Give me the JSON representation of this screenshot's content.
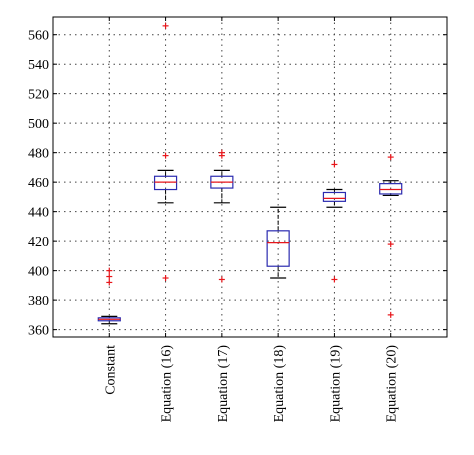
{
  "chart_data": {
    "type": "boxplot",
    "title": "",
    "xlabel": "",
    "ylabel": "",
    "ylim": [
      355,
      572
    ],
    "yticks": [
      360,
      380,
      400,
      420,
      440,
      460,
      480,
      500,
      520,
      540,
      560
    ],
    "grid": true,
    "categories": [
      "Constant",
      "Equation (16)",
      "Equation (17)",
      "Equation (18)",
      "Equation (19)",
      "Equation (20)"
    ],
    "boxes": [
      {
        "whisker_low": 364,
        "q1": 366,
        "median": 367,
        "q3": 368,
        "whisker_high": 369,
        "outliers": [
          392,
          396,
          400
        ]
      },
      {
        "whisker_low": 446,
        "q1": 455,
        "median": 460,
        "q3": 464,
        "whisker_high": 468,
        "outliers": [
          395,
          478,
          566
        ]
      },
      {
        "whisker_low": 446,
        "q1": 456,
        "median": 460,
        "q3": 464,
        "whisker_high": 468,
        "outliers": [
          394,
          478,
          480
        ]
      },
      {
        "whisker_low": 395,
        "q1": 403,
        "median": 419,
        "q3": 427,
        "whisker_high": 443,
        "outliers": []
      },
      {
        "whisker_low": 443,
        "q1": 447,
        "median": 449,
        "q3": 453,
        "whisker_high": 455,
        "outliers": [
          394,
          472
        ]
      },
      {
        "whisker_low": 451,
        "q1": 452,
        "median": 455,
        "q3": 459,
        "whisker_high": 461,
        "outliers": [
          370,
          418,
          477
        ]
      }
    ],
    "colors": {
      "box": "#2b2bb0",
      "median": "#e8161b",
      "outlier": "#e8161b",
      "whisker": "#000000",
      "grid": "#444444"
    }
  }
}
